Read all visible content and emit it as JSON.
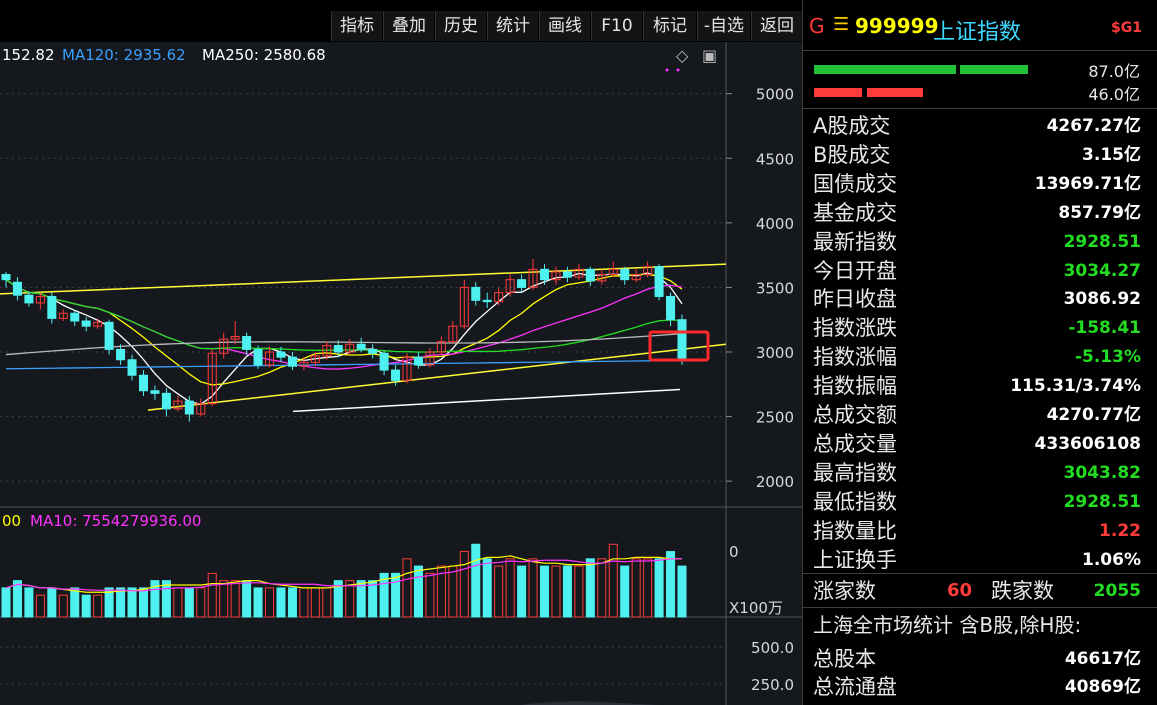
{
  "toolbar": [
    {
      "id": "indicator",
      "label": "指标"
    },
    {
      "id": "overlay",
      "label": "叠加"
    },
    {
      "id": "history",
      "label": "历史"
    },
    {
      "id": "stats",
      "label": "统计"
    },
    {
      "id": "draw",
      "label": "画线"
    },
    {
      "id": "f10",
      "label": "F10"
    },
    {
      "id": "mark",
      "label": "标记"
    },
    {
      "id": "watchlist",
      "label": "-自选"
    },
    {
      "id": "back",
      "label": "返回"
    }
  ],
  "ma_legend": {
    "ma_left": "152.82",
    "ma120": "MA120: 2935.62",
    "ma250": "MA250: 2580.68"
  },
  "vol_legend": {
    "left": "00",
    "ma10": "MA10: 7554279936.00"
  },
  "price_axis": [
    "5000",
    "4500",
    "4000",
    "3500",
    "3000",
    "2500",
    "2000"
  ],
  "volume_axis": {
    "zero": "0",
    "unit": "X100万"
  },
  "bottom_axis": [
    "500.0",
    "250.0"
  ],
  "colors": {
    "up": "#ff3b3b",
    "down": "#4ef0f0",
    "ma5": "#ffffff",
    "ma10": "#ffff00",
    "ma20": "#ff33ff",
    "ma60": "#22dd22",
    "ma120": "#3aa0ff",
    "trend": "#ffff33",
    "highlight": "#ff2a2a"
  },
  "chart_data": {
    "type": "candlestick",
    "ylim": [
      1800,
      5400
    ],
    "candles": [
      [
        3600,
        3560,
        3620,
        3500
      ],
      [
        3540,
        3440,
        3580,
        3400
      ],
      [
        3440,
        3380,
        3470,
        3350
      ],
      [
        3380,
        3430,
        3460,
        3330
      ],
      [
        3430,
        3260,
        3460,
        3220
      ],
      [
        3260,
        3300,
        3330,
        3240
      ],
      [
        3300,
        3240,
        3320,
        3200
      ],
      [
        3240,
        3200,
        3270,
        3160
      ],
      [
        3200,
        3230,
        3260,
        3180
      ],
      [
        3230,
        3020,
        3250,
        2980
      ],
      [
        3020,
        2940,
        3060,
        2900
      ],
      [
        2940,
        2820,
        2980,
        2780
      ],
      [
        2820,
        2700,
        2860,
        2660
      ],
      [
        2700,
        2680,
        2740,
        2630
      ],
      [
        2680,
        2560,
        2720,
        2500
      ],
      [
        2560,
        2620,
        2660,
        2540
      ],
      [
        2620,
        2520,
        2660,
        2460
      ],
      [
        2520,
        2600,
        2640,
        2500
      ],
      [
        2600,
        2990,
        3020,
        2580
      ],
      [
        2990,
        3100,
        3150,
        2950
      ],
      [
        3100,
        3120,
        3240,
        3060
      ],
      [
        3120,
        3020,
        3150,
        2980
      ],
      [
        3020,
        2900,
        3050,
        2870
      ],
      [
        2900,
        3000,
        3040,
        2880
      ],
      [
        3000,
        2960,
        3040,
        2920
      ],
      [
        2960,
        2890,
        3000,
        2860
      ],
      [
        2890,
        2920,
        2960,
        2860
      ],
      [
        2920,
        2970,
        3000,
        2890
      ],
      [
        2970,
        3050,
        3080,
        2940
      ],
      [
        3050,
        3000,
        3090,
        2960
      ],
      [
        3000,
        3060,
        3100,
        2980
      ],
      [
        3060,
        3020,
        3110,
        3000
      ],
      [
        3020,
        2990,
        3060,
        2950
      ],
      [
        2990,
        2860,
        3010,
        2820
      ],
      [
        2860,
        2780,
        2900,
        2740
      ],
      [
        2780,
        2960,
        2990,
        2760
      ],
      [
        2960,
        2900,
        3000,
        2870
      ],
      [
        2900,
        3000,
        3030,
        2880
      ],
      [
        3000,
        3080,
        3120,
        2980
      ],
      [
        3080,
        3200,
        3240,
        3060
      ],
      [
        3200,
        3500,
        3560,
        3180
      ],
      [
        3500,
        3400,
        3540,
        3360
      ],
      [
        3400,
        3390,
        3460,
        3340
      ],
      [
        3390,
        3460,
        3500,
        3360
      ],
      [
        3460,
        3560,
        3600,
        3430
      ],
      [
        3560,
        3500,
        3600,
        3460
      ],
      [
        3500,
        3640,
        3720,
        3480
      ],
      [
        3640,
        3560,
        3680,
        3520
      ],
      [
        3560,
        3620,
        3660,
        3520
      ],
      [
        3620,
        3580,
        3660,
        3540
      ],
      [
        3580,
        3640,
        3680,
        3560
      ],
      [
        3640,
        3550,
        3660,
        3510
      ],
      [
        3550,
        3600,
        3640,
        3520
      ],
      [
        3600,
        3640,
        3700,
        3580
      ],
      [
        3640,
        3560,
        3660,
        3520
      ],
      [
        3560,
        3600,
        3640,
        3540
      ],
      [
        3600,
        3660,
        3700,
        3580
      ],
      [
        3660,
        3430,
        3680,
        3400
      ],
      [
        3430,
        3250,
        3460,
        3200
      ],
      [
        3250,
        2930,
        3290,
        2900
      ]
    ],
    "volumes": [
      4,
      5,
      4,
      3,
      4,
      3,
      4,
      3,
      3,
      4,
      4,
      4,
      4,
      5,
      5,
      4,
      4,
      4,
      6,
      5,
      5,
      5,
      4,
      4,
      4,
      4,
      4,
      4,
      4,
      5,
      5,
      5,
      5,
      6,
      6,
      8,
      7,
      6,
      7,
      7,
      9,
      10,
      8,
      7,
      8,
      7,
      8,
      7,
      7,
      7,
      7,
      8,
      8,
      10,
      7,
      8,
      8,
      8,
      9,
      7
    ]
  },
  "panel": {
    "g_label": "G",
    "menu_icon": "☰",
    "code": "999999",
    "name": "上证指数",
    "tag": "$G1",
    "bar_values": [
      "87.0亿",
      "46.0亿"
    ],
    "trade_rows": [
      {
        "label": "A股成交",
        "value": "4267.27亿"
      },
      {
        "label": "B股成交",
        "value": "3.15亿"
      },
      {
        "label": "国债成交",
        "value": "13969.71亿"
      },
      {
        "label": "基金成交",
        "value": "857.79亿"
      }
    ],
    "index_rows": [
      {
        "label": "最新指数",
        "value": "2928.51",
        "color": "#22dd22"
      },
      {
        "label": "今日开盘",
        "value": "3034.27",
        "color": "#22dd22"
      },
      {
        "label": "昨日收盘",
        "value": "3086.92",
        "color": "#ffffff"
      },
      {
        "label": "指数涨跌",
        "value": "-158.41",
        "color": "#22dd22"
      },
      {
        "label": "指数涨幅",
        "value": "-5.13%",
        "color": "#22dd22"
      },
      {
        "label": "指数振幅",
        "value": "115.31/3.74%",
        "color": "#ffffff"
      },
      {
        "label": "总成交额",
        "value": "4270.77亿",
        "color": "#ffffff"
      },
      {
        "label": "总成交量",
        "value": "433606108",
        "color": "#ffffff"
      },
      {
        "label": "最高指数",
        "value": "3043.82",
        "color": "#22dd22"
      },
      {
        "label": "最低指数",
        "value": "2928.51",
        "color": "#22dd22"
      },
      {
        "label": "指数量比",
        "value": "1.22",
        "color": "#ff3b3b"
      },
      {
        "label": "上证换手",
        "value": "1.06%",
        "color": "#ffffff"
      }
    ],
    "rise_label": "涨家数",
    "rise_value": "60",
    "fall_label": "跌家数",
    "fall_value": "2055",
    "market_stats_label": "上海全市场统计 含B股,除H股:",
    "share_rows": [
      {
        "label": "总股本",
        "value": "46617亿"
      },
      {
        "label": "总流通盘",
        "value": "40869亿"
      }
    ]
  }
}
